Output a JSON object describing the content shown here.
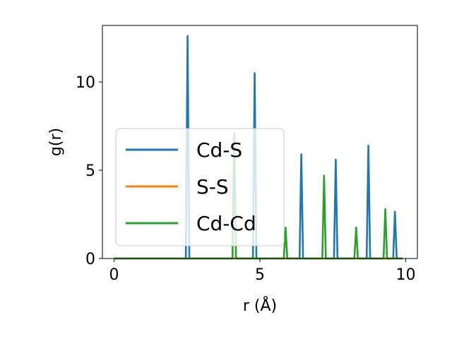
{
  "chart_data": {
    "type": "line",
    "xlabel": "r (Å)",
    "ylabel": "g(r)",
    "xlim": [
      -0.4,
      10.4
    ],
    "ylim": [
      0,
      13.2
    ],
    "xticks": [
      {
        "value": 0,
        "label": "0"
      },
      {
        "value": 5,
        "label": "5"
      },
      {
        "value": 10,
        "label": "10"
      }
    ],
    "yticks": [
      {
        "value": 0,
        "label": "0"
      },
      {
        "value": 5,
        "label": "5"
      },
      {
        "value": 10,
        "label": "10"
      }
    ],
    "grid": false,
    "legend_position": "center-left",
    "x_range": [
      0,
      9.9
    ],
    "peak_half_width": 0.06,
    "series": [
      {
        "name": "Cd-S",
        "color": "#1f77b4",
        "peaks": [
          {
            "r": 2.52,
            "g": 12.6
          },
          {
            "r": 4.82,
            "g": 10.5
          },
          {
            "r": 6.42,
            "g": 5.9
          },
          {
            "r": 7.6,
            "g": 5.6
          },
          {
            "r": 8.72,
            "g": 6.4
          },
          {
            "r": 9.63,
            "g": 2.65
          }
        ]
      },
      {
        "name": "S-S",
        "color": "#ff7f0e",
        "peaks": []
      },
      {
        "name": "Cd-Cd",
        "color": "#2ca02c",
        "peaks": [
          {
            "r": 4.12,
            "g": 7.1
          },
          {
            "r": 5.88,
            "g": 1.75
          },
          {
            "r": 7.2,
            "g": 4.7
          },
          {
            "r": 8.3,
            "g": 1.75
          },
          {
            "r": 9.3,
            "g": 2.8
          }
        ]
      }
    ]
  }
}
